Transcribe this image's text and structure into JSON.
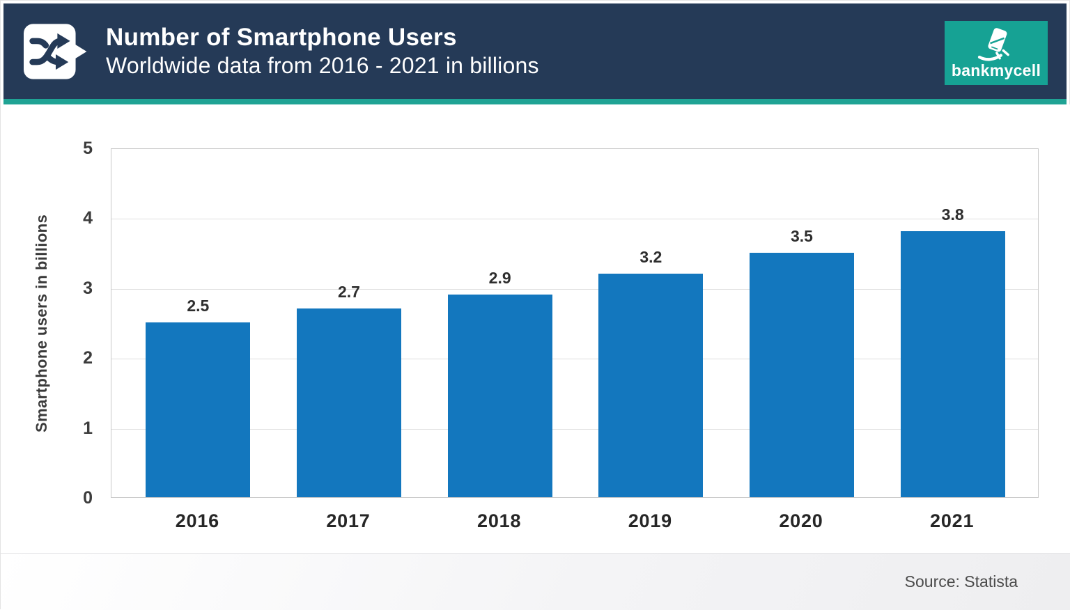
{
  "header": {
    "title": "Number of Smartphone Users",
    "subtitle": "Worldwide data from 2016 - 2021 in billions",
    "logo_text": "bankmycell",
    "colors": {
      "header_bg": "#253a57",
      "accent_teal": "#1fa394",
      "logo_bg": "#16a294"
    }
  },
  "chart_data": {
    "type": "bar",
    "categories": [
      "2016",
      "2017",
      "2018",
      "2019",
      "2020",
      "2021"
    ],
    "values": [
      2.5,
      2.7,
      2.9,
      3.2,
      3.5,
      3.8
    ],
    "data_labels": [
      "2.5",
      "2.7",
      "2.9",
      "3.2",
      "3.5",
      "3.8"
    ],
    "title": "Number of Smartphone Users",
    "subtitle": "Worldwide data from 2016 - 2021 in billions",
    "xlabel": "",
    "ylabel": "Smartphone users in billions",
    "ylim": [
      0,
      5
    ],
    "yticks": [
      0,
      1,
      2,
      3,
      4,
      5
    ],
    "grid": true,
    "legend": false,
    "bar_color": "#1377be"
  },
  "footer": {
    "source": "Source: Statista"
  }
}
